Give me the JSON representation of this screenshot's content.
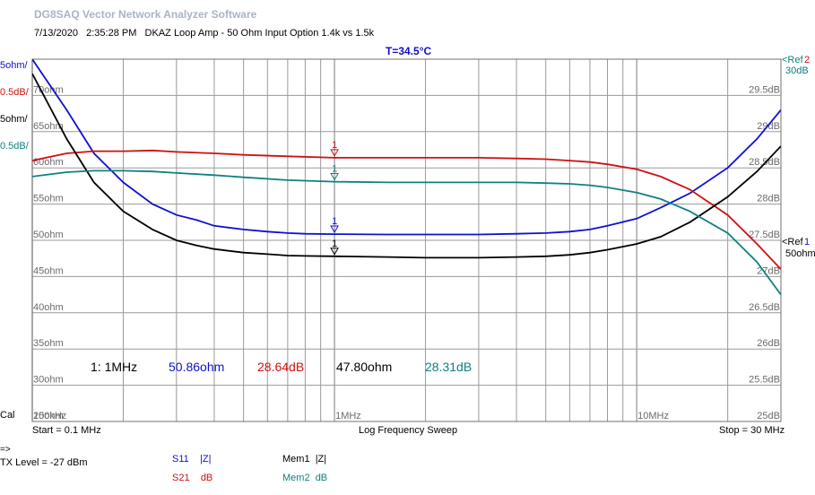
{
  "app_title": "DG8SAQ Vector Network Analyzer Software",
  "header": {
    "date": "7/13/2020",
    "time": "2:35:28 PM",
    "description": "DKAZ Loop Amp - 50 Ohm Input Option 1.4k vs 1.5k"
  },
  "temperature": "T=34.5°C",
  "cal_label": "Cal",
  "footer": {
    "start": "Start = 0.1 MHz",
    "sweep_mode": "Log Frequency Sweep",
    "stop": "Stop = 30 MHz",
    "arrow": "=>",
    "tx_level": "TX Level = -27 dBm"
  },
  "legend": [
    {
      "trace": "S11",
      "quantity": "|Z|",
      "color": "#1010d0"
    },
    {
      "trace": "S21",
      "quantity": "dB",
      "color": "#d01010"
    },
    {
      "trace": "Mem1",
      "quantity": "|Z|",
      "color": "#000000"
    },
    {
      "trace": "Mem2",
      "quantity": "dB",
      "color": "#108080"
    }
  ],
  "marker_readout": {
    "label": "1:",
    "freq": "1MHz",
    "s11": "50.86ohm",
    "s21": "28.64dB",
    "mem1": "47.80ohm",
    "mem2": "28.31dB"
  },
  "left_scale_labels": [
    {
      "text": "5ohm/",
      "color": "#1010d0"
    },
    {
      "text": "0.5dB/",
      "color": "#d01010"
    },
    {
      "text": "5ohm/",
      "color": "#000000"
    },
    {
      "text": "0.5dB/",
      "color": "#108080"
    }
  ],
  "right_ref_labels": {
    "top_ref": "Ref",
    "top_ref_num": "2",
    "top_ref_value": "30dB",
    "mid_ref": "Ref",
    "mid_ref_num": "1",
    "mid_ref_value": "50ohm"
  },
  "colors": {
    "s11": "#1010d0",
    "s21": "#d01010",
    "mem1": "#000000",
    "mem2": "#108080",
    "grid": "#9a9a9a",
    "title": "#a9b4c4"
  },
  "chart_data": {
    "type": "line",
    "xscale": "log",
    "xlim": [
      0.1,
      30
    ],
    "x_tick_labels": [
      "1MHz",
      "10MHz"
    ],
    "x_start_label": "100kHz",
    "left_axis": {
      "unit": "ohm",
      "ylim": [
        25,
        75
      ],
      "ticks": [
        "25ohm",
        "30ohm",
        "35ohm",
        "40ohm",
        "45ohm",
        "50ohm",
        "55ohm",
        "60ohm",
        "65ohm",
        "70ohm"
      ]
    },
    "right_axis": {
      "unit": "dB",
      "ylim": [
        25,
        30
      ],
      "ticks": [
        "25dB",
        "25.5dB",
        "26dB",
        "26.5dB",
        "27dB",
        "27.5dB",
        "28dB",
        "28.5dB",
        "29dB",
        "29.5dB"
      ]
    },
    "grid": true,
    "series": [
      {
        "name": "S11 |Z|",
        "axis": "left",
        "x": [
          0.1,
          0.13,
          0.16,
          0.2,
          0.25,
          0.3,
          0.35,
          0.4,
          0.5,
          0.6,
          0.7,
          0.8,
          1,
          1.5,
          2,
          3,
          4,
          5,
          6,
          7,
          8,
          10,
          12,
          15,
          20,
          25,
          30
        ],
        "y": [
          75,
          68,
          62,
          58,
          55,
          53.5,
          52.8,
          52,
          51.5,
          51.2,
          51,
          50.9,
          50.86,
          50.8,
          50.8,
          50.8,
          50.9,
          51,
          51.2,
          51.5,
          52,
          53,
          54.5,
          56.5,
          60,
          64,
          68
        ]
      },
      {
        "name": "S21 dB",
        "axis": "right",
        "x": [
          0.1,
          0.13,
          0.16,
          0.2,
          0.25,
          0.3,
          0.4,
          0.5,
          0.7,
          1,
          1.5,
          2,
          3,
          4,
          5,
          6,
          7,
          8,
          10,
          12,
          15,
          20,
          25,
          30
        ],
        "y": [
          28.6,
          28.7,
          28.73,
          28.73,
          28.74,
          28.72,
          28.7,
          28.68,
          28.66,
          28.64,
          28.64,
          28.64,
          28.64,
          28.63,
          28.62,
          28.6,
          28.58,
          28.55,
          28.48,
          28.38,
          28.2,
          27.85,
          27.45,
          27.1
        ]
      },
      {
        "name": "Mem1 |Z|",
        "axis": "left",
        "x": [
          0.1,
          0.13,
          0.16,
          0.2,
          0.25,
          0.3,
          0.35,
          0.4,
          0.5,
          0.6,
          0.7,
          0.8,
          1,
          1.5,
          2,
          3,
          4,
          5,
          6,
          7,
          8,
          10,
          12,
          15,
          20,
          25,
          30
        ],
        "y": [
          73,
          64,
          58,
          54,
          51.5,
          50,
          49.3,
          48.8,
          48.3,
          48.1,
          47.9,
          47.85,
          47.8,
          47.7,
          47.6,
          47.6,
          47.7,
          47.8,
          48,
          48.3,
          48.7,
          49.5,
          50.5,
          52.5,
          56,
          59.5,
          63
        ]
      },
      {
        "name": "Mem2 dB",
        "axis": "right",
        "x": [
          0.1,
          0.13,
          0.16,
          0.2,
          0.25,
          0.3,
          0.4,
          0.5,
          0.7,
          1,
          1.5,
          2,
          3,
          4,
          5,
          6,
          7,
          8,
          10,
          12,
          15,
          20,
          25,
          30
        ],
        "y": [
          28.38,
          28.44,
          28.46,
          28.46,
          28.45,
          28.43,
          28.4,
          28.37,
          28.33,
          28.31,
          28.3,
          28.3,
          28.3,
          28.3,
          28.29,
          28.28,
          28.26,
          28.23,
          28.16,
          28.07,
          27.9,
          27.6,
          27.2,
          26.75
        ]
      }
    ],
    "markers": [
      {
        "label": "1",
        "x": 1,
        "series": "S11 |Z|"
      },
      {
        "label": "1",
        "x": 1,
        "series": "S21 dB"
      },
      {
        "label": "1",
        "x": 1,
        "series": "Mem1 |Z|"
      },
      {
        "label": "1",
        "x": 1,
        "series": "Mem2 dB"
      }
    ]
  }
}
